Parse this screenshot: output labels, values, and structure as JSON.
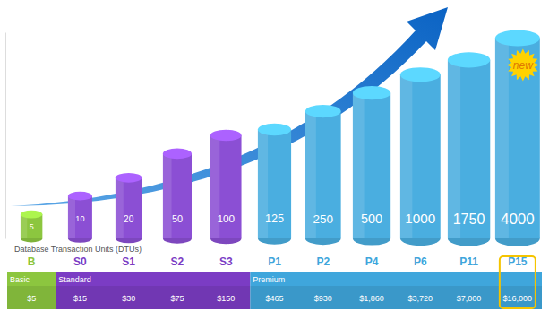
{
  "chart_data": {
    "type": "bar",
    "categories": [
      "B",
      "S0",
      "S1",
      "S2",
      "S3",
      "P1",
      "P2",
      "P4",
      "P6",
      "P11",
      "P15"
    ],
    "values": [
      5,
      10,
      20,
      50,
      100,
      125,
      250,
      500,
      1000,
      1750,
      4000
    ],
    "colors": [
      "#8cc63f",
      "#8b4fd4",
      "#8b4fd4",
      "#8b4fd4",
      "#8b4fd4",
      "#4aaee0",
      "#4aaee0",
      "#4aaee0",
      "#4aaee0",
      "#4aaee0",
      "#4aaee0"
    ],
    "ylabel": "Database Transaction Units (DTUs)",
    "ylim": [
      2,
      5000
    ],
    "log": "y",
    "tick_labels": "x",
    "data_labels": true,
    "groups": [
      {
        "name": "Basic",
        "color": "#8cc63f",
        "categories": [
          "B"
        ]
      },
      {
        "name": "Standard",
        "color": "#7b3cc4",
        "categories": [
          "S0",
          "S1",
          "S2",
          "S3"
        ]
      },
      {
        "name": "Premium",
        "color": "#3fa6dc",
        "categories": [
          "P1",
          "P2",
          "P4",
          "P6",
          "P11",
          "P15"
        ]
      }
    ],
    "prices": [
      "$5",
      "$15",
      "$30",
      "$75",
      "$150",
      "$465",
      "$930",
      "$1,860",
      "$3,720",
      "$7,000",
      "$16,000"
    ],
    "annotations": [
      {
        "text": "new",
        "category": "P15"
      }
    ]
  }
}
